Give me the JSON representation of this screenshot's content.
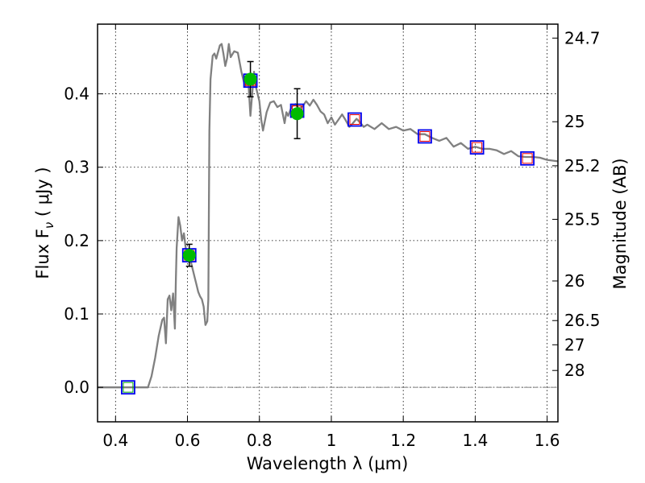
{
  "chart_data": {
    "type": "line",
    "xlabel": "Wavelength  λ (μm)",
    "ylabel": "Flux  F",
    "ylabel_sub": "ν",
    "ylabel_unit": "  ( μJy )",
    "ylabel_right": "Magnitude (AB)",
    "xlim": [
      0.35,
      1.63
    ],
    "ylim": [
      -0.047,
      0.495
    ],
    "grid": true,
    "grid_style": "dotted",
    "x_ticks": [
      0.4,
      0.6,
      0.8,
      1.0,
      1.2,
      1.4,
      1.6
    ],
    "x_tick_labels": [
      "0.4",
      "0.6",
      "0.8",
      "1",
      "1.2",
      "1.4",
      "1.6"
    ],
    "y_ticks": [
      0.0,
      0.1,
      0.2,
      0.3,
      0.4
    ],
    "y_tick_labels": [
      "0.0",
      "0.1",
      "0.2",
      "0.3",
      "0.4"
    ],
    "right_ticks": [
      {
        "label": "24.7",
        "flux": 0.476
      },
      {
        "label": "25",
        "flux": 0.362
      },
      {
        "label": "25.2",
        "flux": 0.302
      },
      {
        "label": "25.5",
        "flux": 0.229
      },
      {
        "label": "26",
        "flux": 0.145
      },
      {
        "label": "26.5",
        "flux": 0.091
      },
      {
        "label": "27",
        "flux": 0.058
      },
      {
        "label": "28",
        "flux": 0.023
      }
    ],
    "colors": {
      "model": "#808080",
      "box_edge": "#0000ee",
      "box_inner": "#ee0000",
      "box_inner_first": "#00aa00",
      "points": "#00bb00",
      "errorbars": "#000000",
      "zero_line": "#555555"
    },
    "series": [
      {
        "style": "line",
        "x": [
          0.35,
          0.49,
          0.5,
          0.51,
          0.52,
          0.53,
          0.535,
          0.54,
          0.545,
          0.55,
          0.555,
          0.56,
          0.565,
          0.568,
          0.57,
          0.575,
          0.58,
          0.585,
          0.59,
          0.595,
          0.6,
          0.605,
          0.61,
          0.615,
          0.62,
          0.625,
          0.63,
          0.635,
          0.64,
          0.645,
          0.65,
          0.655,
          0.658,
          0.661,
          0.664,
          0.67,
          0.675,
          0.68,
          0.69,
          0.695,
          0.7,
          0.705,
          0.71,
          0.715,
          0.72,
          0.73,
          0.74,
          0.75,
          0.76,
          0.765,
          0.77,
          0.775,
          0.78,
          0.785,
          0.79,
          0.8,
          0.805,
          0.81,
          0.82,
          0.83,
          0.84,
          0.85,
          0.86,
          0.87,
          0.875,
          0.88,
          0.89,
          0.9,
          0.91,
          0.92,
          0.93,
          0.94,
          0.95,
          0.96,
          0.97,
          0.98,
          0.99,
          1.0,
          1.01,
          1.02,
          1.03,
          1.04,
          1.05,
          1.06,
          1.07,
          1.08,
          1.09,
          1.1,
          1.12,
          1.14,
          1.16,
          1.18,
          1.2,
          1.22,
          1.24,
          1.26,
          1.28,
          1.3,
          1.32,
          1.34,
          1.36,
          1.38,
          1.4,
          1.42,
          1.44,
          1.46,
          1.48,
          1.5,
          1.52,
          1.54,
          1.56,
          1.58,
          1.6,
          1.63
        ],
        "y": [
          0.0,
          0.0,
          0.015,
          0.04,
          0.07,
          0.092,
          0.095,
          0.06,
          0.12,
          0.125,
          0.105,
          0.128,
          0.08,
          0.15,
          0.19,
          0.232,
          0.22,
          0.2,
          0.21,
          0.19,
          0.186,
          0.18,
          0.17,
          0.16,
          0.15,
          0.14,
          0.13,
          0.124,
          0.12,
          0.11,
          0.085,
          0.09,
          0.12,
          0.35,
          0.42,
          0.452,
          0.455,
          0.448,
          0.466,
          0.468,
          0.455,
          0.438,
          0.448,
          0.468,
          0.45,
          0.458,
          0.456,
          0.43,
          0.41,
          0.415,
          0.41,
          0.37,
          0.4,
          0.43,
          0.41,
          0.39,
          0.365,
          0.35,
          0.375,
          0.388,
          0.39,
          0.382,
          0.385,
          0.36,
          0.375,
          0.37,
          0.383,
          0.386,
          0.38,
          0.383,
          0.39,
          0.384,
          0.392,
          0.385,
          0.376,
          0.372,
          0.36,
          0.368,
          0.358,
          0.365,
          0.372,
          0.364,
          0.355,
          0.36,
          0.366,
          0.361,
          0.355,
          0.358,
          0.352,
          0.36,
          0.352,
          0.355,
          0.35,
          0.352,
          0.345,
          0.345,
          0.34,
          0.336,
          0.34,
          0.328,
          0.333,
          0.325,
          0.328,
          0.325,
          0.325,
          0.323,
          0.318,
          0.322,
          0.315,
          0.314,
          0.314,
          0.313,
          0.31,
          0.308
        ]
      },
      {
        "style": "squares",
        "x": [
          0.435,
          0.605,
          0.775,
          0.905,
          1.065,
          1.26,
          1.405,
          1.545
        ],
        "y": [
          0.0,
          0.18,
          0.418,
          0.377,
          0.365,
          0.342,
          0.327,
          0.312
        ]
      },
      {
        "style": "points_errorbars",
        "x": [
          0.605,
          0.775,
          0.905
        ],
        "y": [
          0.18,
          0.42,
          0.373
        ],
        "yerr": [
          0.015,
          0.024,
          0.034
        ]
      }
    ]
  }
}
